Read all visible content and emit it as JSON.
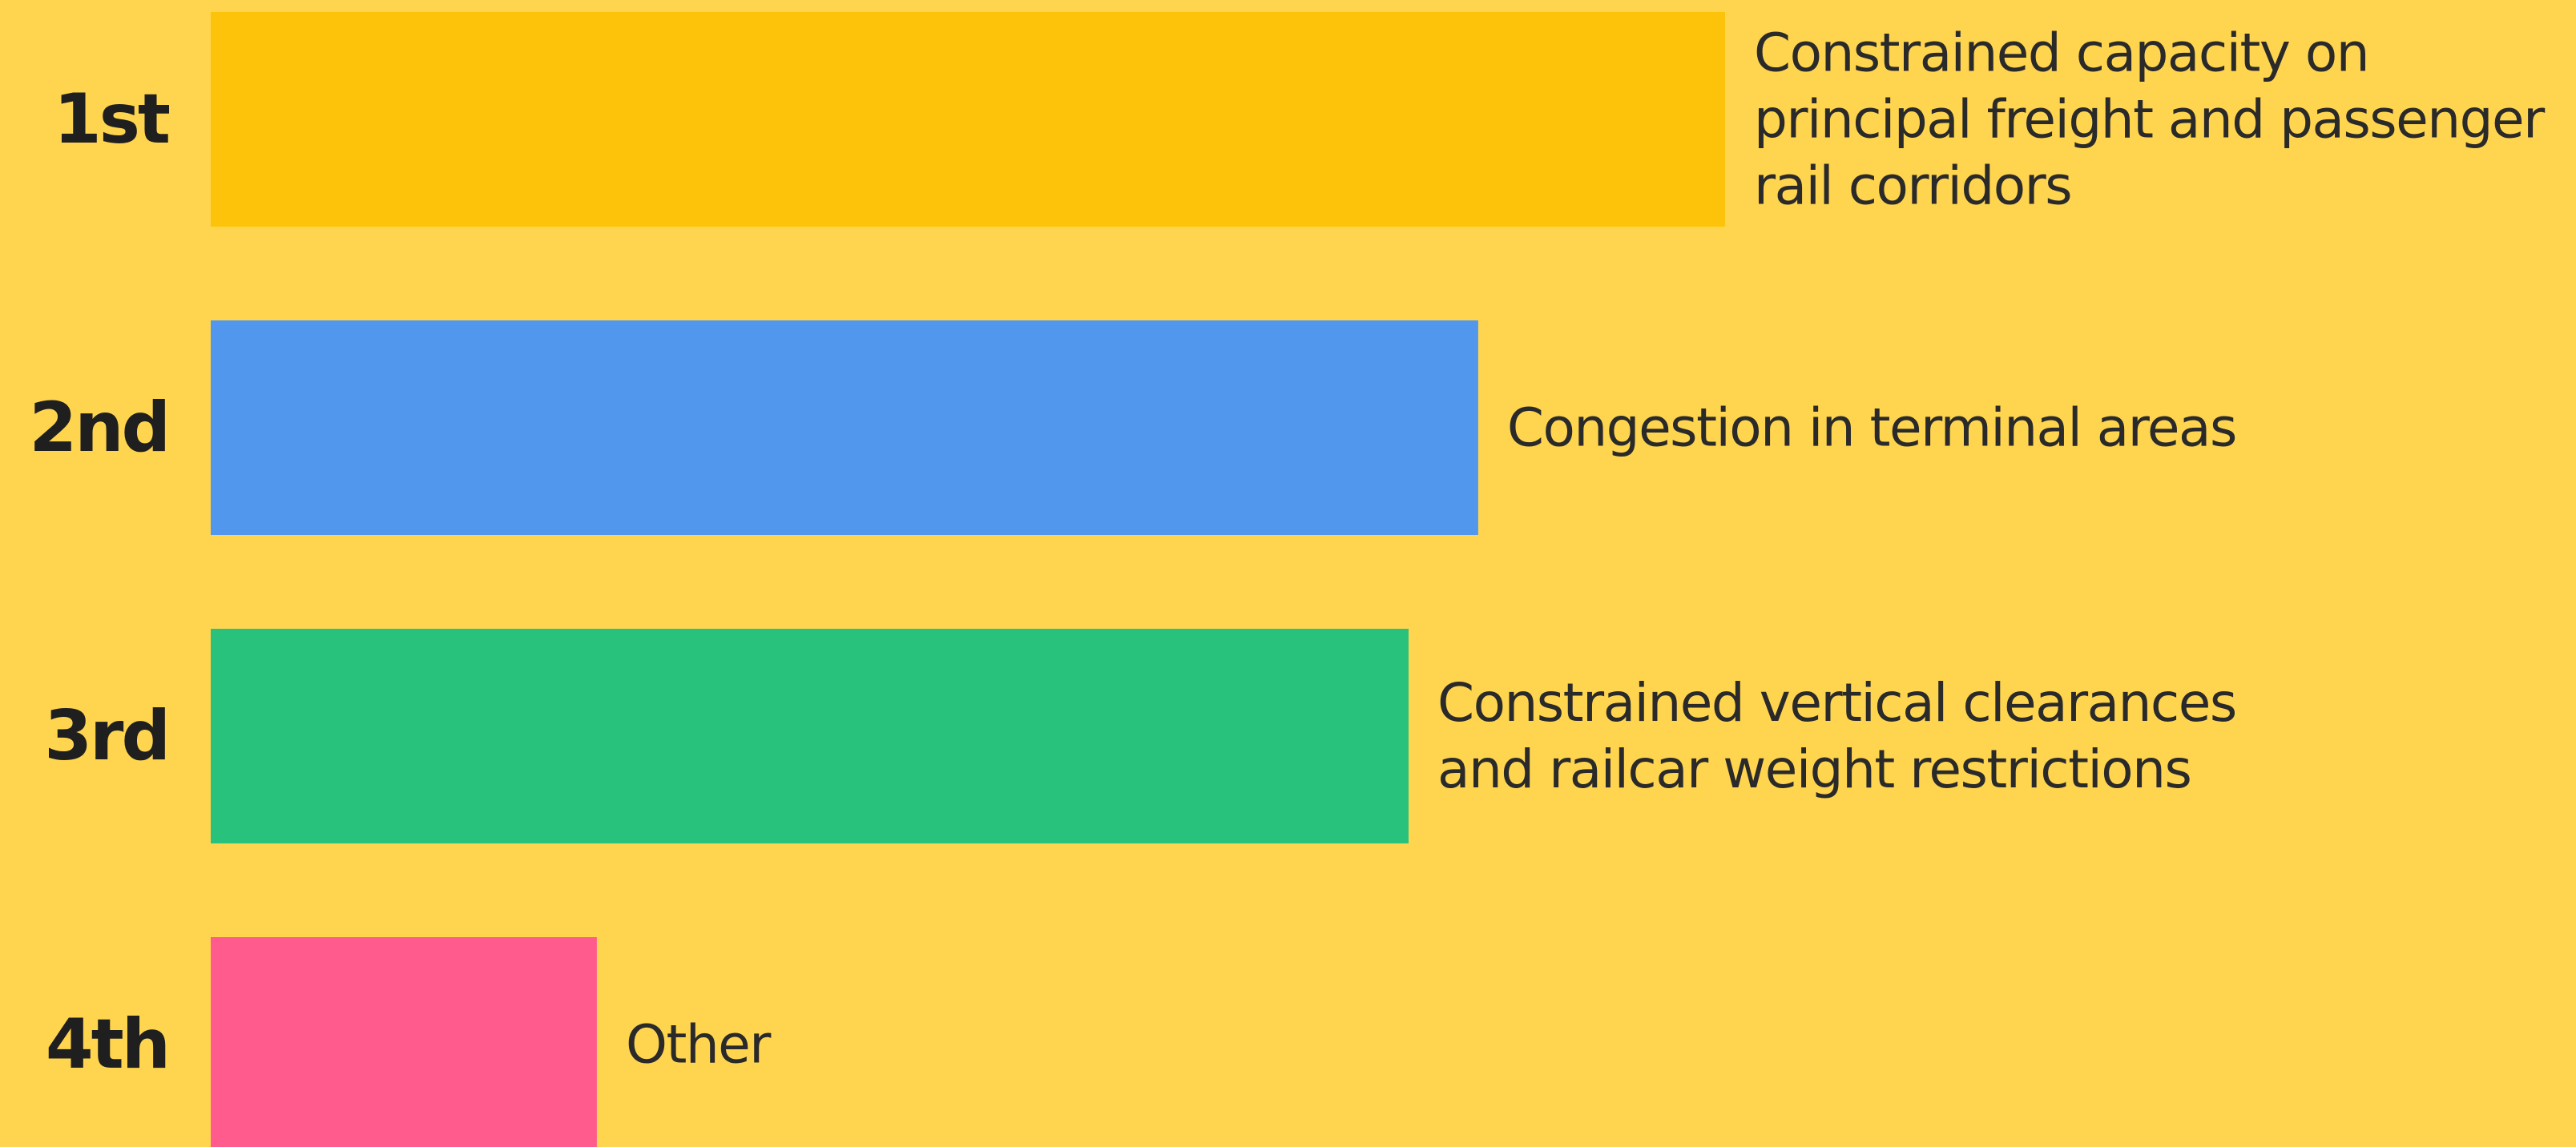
{
  "chart_data": {
    "type": "bar",
    "orientation": "horizontal",
    "title": "",
    "xlabel": "",
    "ylabel": "",
    "categories": [
      "1st",
      "2nd",
      "3rd",
      "4th"
    ],
    "values": [
      100,
      83.7,
      79.1,
      25.5
    ],
    "xlim": [
      0,
      100
    ],
    "labels": [
      [
        "Constrained capacity on",
        "principal freight and passenger",
        "rail corridors"
      ],
      [
        "Congestion in terminal areas"
      ],
      [
        "Constrained vertical clearances",
        "and railcar weight restrictions"
      ],
      [
        "Other"
      ]
    ],
    "colors": [
      "#FDC30A",
      "#5197EE",
      "#29C27D",
      "#FF5C8D"
    ],
    "background": "#FFD54F",
    "grid": false,
    "legend": "none"
  }
}
